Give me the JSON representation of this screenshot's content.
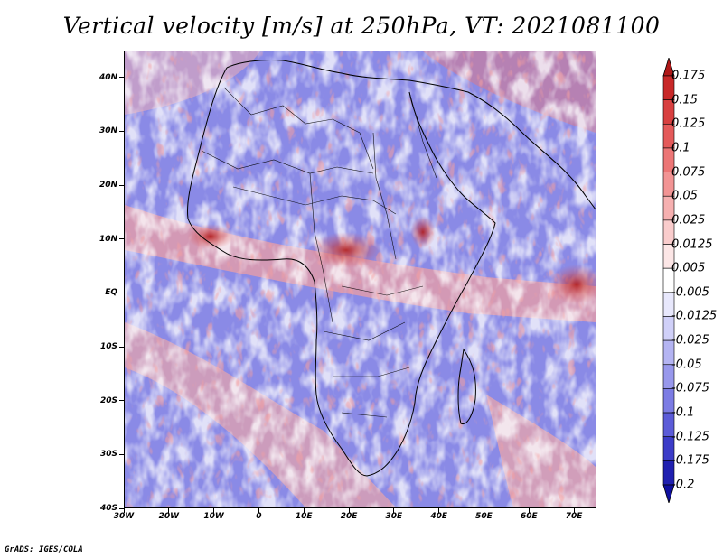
{
  "title": "Vertical velocity [m/s] at 250hPa, VT: 2021081100",
  "footer": "GrADS: IGES/COLA",
  "map": {
    "lon_range": [
      -30,
      75
    ],
    "lat_range": [
      -40,
      45
    ],
    "lat_ticks": [
      {
        "value": 40,
        "label": "40N"
      },
      {
        "value": 30,
        "label": "30N"
      },
      {
        "value": 20,
        "label": "20N"
      },
      {
        "value": 10,
        "label": "10N"
      },
      {
        "value": 0,
        "label": "EQ"
      },
      {
        "value": -10,
        "label": "10S"
      },
      {
        "value": -20,
        "label": "20S"
      },
      {
        "value": -30,
        "label": "30S"
      },
      {
        "value": -40,
        "label": "40S"
      }
    ],
    "lon_ticks": [
      {
        "value": -30,
        "label": "30W"
      },
      {
        "value": -20,
        "label": "20W"
      },
      {
        "value": -10,
        "label": "10W"
      },
      {
        "value": 0,
        "label": "0"
      },
      {
        "value": 10,
        "label": "10E"
      },
      {
        "value": 20,
        "label": "20E"
      },
      {
        "value": 30,
        "label": "30E"
      },
      {
        "value": 40,
        "label": "40E"
      },
      {
        "value": 50,
        "label": "50E"
      },
      {
        "value": 60,
        "label": "60E"
      },
      {
        "value": 70,
        "label": "70E"
      }
    ]
  },
  "colorbar": {
    "labels": [
      "0.175",
      "0.15",
      "0.125",
      "0.1",
      "0.075",
      "0.05",
      "0.025",
      "0.0125",
      "0.005",
      "-0.005",
      "-0.0125",
      "-0.025",
      "-0.05",
      "-0.075",
      "-0.1",
      "-0.125",
      "-0.175",
      "-0.2"
    ],
    "colors": [
      "#b01818",
      "#c82828",
      "#d84040",
      "#e45a5a",
      "#ec7676",
      "#f29494",
      "#f6b0b0",
      "#f9cccc",
      "#fce6e6",
      "#ffffff",
      "#e8e8fc",
      "#d0d0f8",
      "#b4b4f2",
      "#9898ec",
      "#7c7ce4",
      "#5c5cd8",
      "#3c3cc8",
      "#2020b0",
      "#1010a0"
    ]
  }
}
